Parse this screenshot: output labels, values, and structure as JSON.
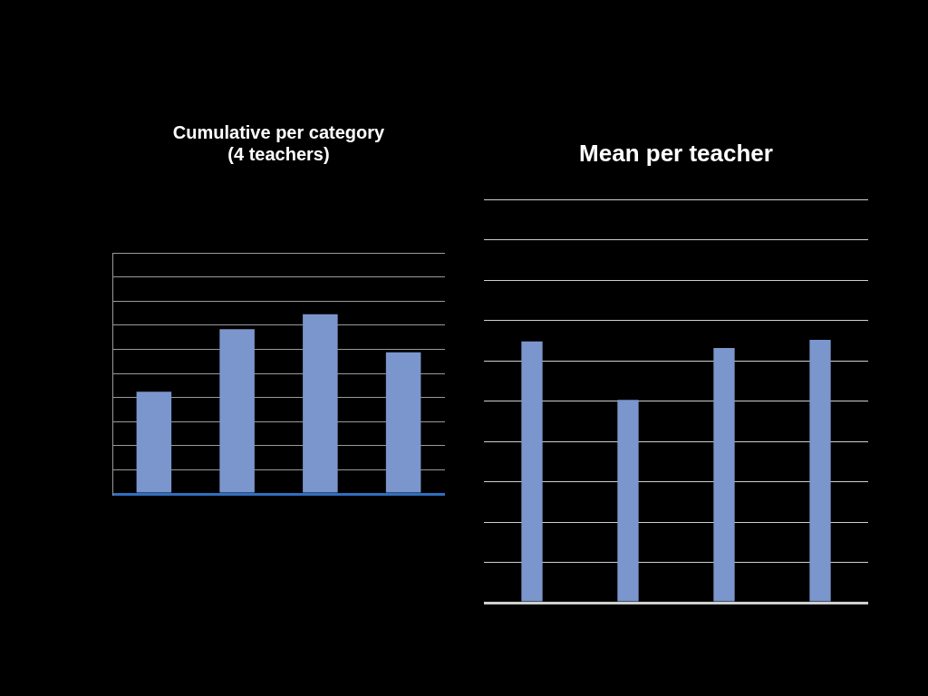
{
  "chart_data": [
    {
      "type": "bar",
      "title": [
        "Cumulative per category",
        "(4 teachers)"
      ],
      "categories": [
        null,
        null,
        null,
        null
      ],
      "values": [
        4.24,
        6.83,
        7.45,
        5.87
      ],
      "color": "#7b96cc",
      "ylim": [
        0,
        10
      ],
      "yticks": [
        0,
        1,
        2,
        3,
        4,
        5,
        6,
        7,
        8,
        9,
        10
      ],
      "grid": true,
      "tick_labels": false
    },
    {
      "type": "bar",
      "title": "Mean per teacher",
      "categories": [
        null,
        null,
        null,
        null
      ],
      "values": [
        6.48,
        5.03,
        6.32,
        6.52
      ],
      "color": "#7b96cc",
      "ylim": [
        0,
        10
      ],
      "yticks": [
        0,
        1,
        2,
        3,
        4,
        5,
        6,
        7,
        8,
        9,
        10
      ],
      "grid": true,
      "tick_labels": false
    }
  ]
}
